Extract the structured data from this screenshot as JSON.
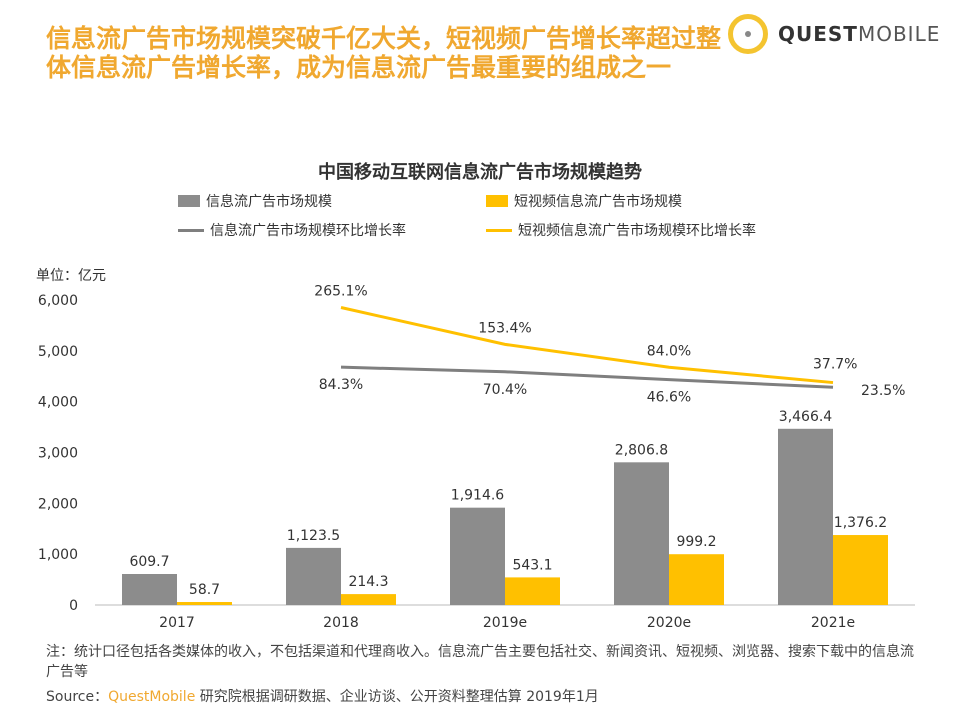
{
  "headline": "信息流广告市场规模突破千亿大关，短视频广告增长率超过整体信息流广告增长率，成为信息流广告最重要的组成之一",
  "logo": {
    "bold": "QUEST",
    "light": "MOBILE"
  },
  "colors": {
    "gray": "#8c8c8c",
    "yellow": "#ffc000",
    "accent": "#f0a830"
  },
  "chart_data": {
    "type": "bar+line",
    "title": "中国移动互联网信息流广告市场规模趋势",
    "unit_label": "单位：亿元",
    "categories": [
      "2017",
      "2018",
      "2019e",
      "2020e",
      "2021e"
    ],
    "ylim": [
      0,
      6000
    ],
    "yticks": [
      "0",
      "1,000",
      "2,000",
      "3,000",
      "4,000",
      "5,000",
      "6,000"
    ],
    "series": [
      {
        "name": "信息流广告市场规模",
        "kind": "bar",
        "color": "#8c8c8c",
        "values": [
          609.7,
          1123.5,
          1914.6,
          2806.8,
          3466.4
        ],
        "labels": [
          "609.7",
          "1,123.5",
          "1,914.6",
          "2,806.8",
          "3,466.4"
        ]
      },
      {
        "name": "短视频信息流广告市场规模",
        "kind": "bar",
        "color": "#ffc000",
        "values": [
          58.7,
          214.3,
          543.1,
          999.2,
          1376.2
        ],
        "labels": [
          "58.7",
          "214.3",
          "543.1",
          "999.2",
          "1,376.2"
        ]
      },
      {
        "name": "信息流广告市场规模环比增长率",
        "kind": "line",
        "color": "#7f7f7f",
        "values": [
          null,
          84.3,
          70.4,
          46.6,
          23.5
        ],
        "labels": [
          "",
          "84.3%",
          "70.4%",
          "46.6%",
          "23.5%"
        ]
      },
      {
        "name": "短视频信息流广告市场规模环比增长率",
        "kind": "line",
        "color": "#ffc000",
        "values": [
          null,
          265.1,
          153.4,
          84.0,
          37.7
        ],
        "labels": [
          "",
          "265.1%",
          "153.4%",
          "84.0%",
          "37.7%"
        ]
      }
    ]
  },
  "note": "注：统计口径包括各类媒体的收入，不包括渠道和代理商收入。信息流广告主要包括社交、新闻资讯、短视频、浏览器、搜索下载中的信息流广告等",
  "source": {
    "prefix": "Source：",
    "brand": "QuestMobile",
    "text": " 研究院根据调研数据、企业访谈、公开资料整理估算 2019年1月"
  }
}
